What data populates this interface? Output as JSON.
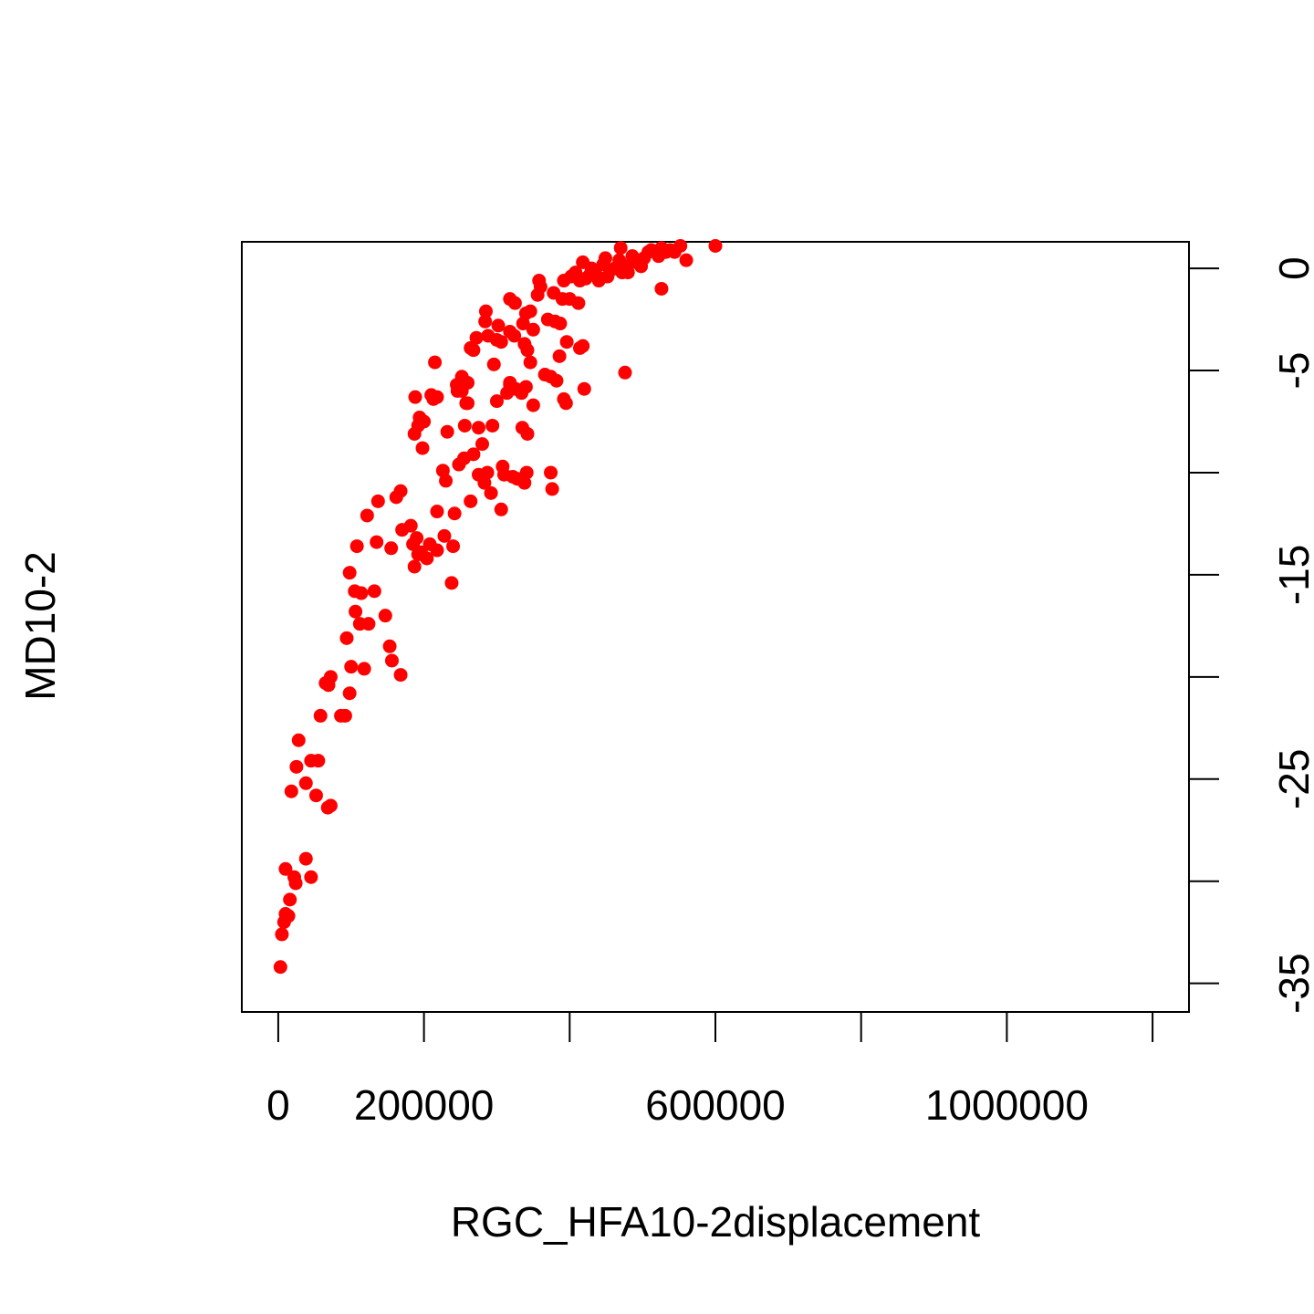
{
  "chart_data": {
    "type": "scatter",
    "title": "",
    "xlabel": "RGC_HFA10-2displacement",
    "ylabel": "MD10-2",
    "xlim": [
      -50000,
      1250000
    ],
    "ylim": [
      -36.4,
      1.3
    ],
    "x_ticks": [
      0,
      200000,
      400000,
      600000,
      800000,
      1000000,
      1200000
    ],
    "x_tick_labels": [
      "0",
      "200000",
      "",
      "600000",
      "",
      "1000000",
      ""
    ],
    "y_ticks": [
      0,
      -5,
      -10,
      -15,
      -20,
      -25,
      -30,
      -35
    ],
    "y_tick_labels": [
      "0",
      "-5",
      "",
      "-15",
      "",
      "-25",
      "",
      "-35"
    ],
    "y_axis_side": "right",
    "grid": false,
    "legend": "none",
    "point_color": "#ff0000",
    "points": [
      [
        3000,
        -34.2
      ],
      [
        5000,
        -32.6
      ],
      [
        8000,
        -32.0
      ],
      [
        10000,
        -31.6
      ],
      [
        14000,
        -31.7
      ],
      [
        16000,
        -30.9
      ],
      [
        10000,
        -29.4
      ],
      [
        22000,
        -29.8
      ],
      [
        24000,
        -30.1
      ],
      [
        38000,
        -28.9
      ],
      [
        45000,
        -29.8
      ],
      [
        18000,
        -25.6
      ],
      [
        25000,
        -24.4
      ],
      [
        38000,
        -25.2
      ],
      [
        45000,
        -24.1
      ],
      [
        55000,
        -24.1
      ],
      [
        52000,
        -25.8
      ],
      [
        68000,
        -26.4
      ],
      [
        72000,
        -26.3
      ],
      [
        28000,
        -23.1
      ],
      [
        58000,
        -21.9
      ],
      [
        65000,
        -20.3
      ],
      [
        72000,
        -20.0
      ],
      [
        69000,
        -20.4
      ],
      [
        86000,
        -21.9
      ],
      [
        92000,
        -21.9
      ],
      [
        98000,
        -20.8
      ],
      [
        100000,
        -19.5
      ],
      [
        118000,
        -19.6
      ],
      [
        94000,
        -18.1
      ],
      [
        106000,
        -16.8
      ],
      [
        112000,
        -17.4
      ],
      [
        124000,
        -17.4
      ],
      [
        132000,
        -15.8
      ],
      [
        105000,
        -15.8
      ],
      [
        98000,
        -14.9
      ],
      [
        114000,
        -15.9
      ],
      [
        147000,
        -17.0
      ],
      [
        153000,
        -18.5
      ],
      [
        156000,
        -19.2
      ],
      [
        168000,
        -19.9
      ],
      [
        108000,
        -13.6
      ],
      [
        122000,
        -12.1
      ],
      [
        135000,
        -13.4
      ],
      [
        137000,
        -11.4
      ],
      [
        155000,
        -13.7
      ],
      [
        162000,
        -11.2
      ],
      [
        168000,
        -10.9
      ],
      [
        170000,
        -12.8
      ],
      [
        185000,
        -13.5
      ],
      [
        182000,
        -12.6
      ],
      [
        190000,
        -13.2
      ],
      [
        192000,
        -14.0
      ],
      [
        187000,
        -14.6
      ],
      [
        196000,
        -13.9
      ],
      [
        204000,
        -14.2
      ],
      [
        208000,
        -13.5
      ],
      [
        218000,
        -13.8
      ],
      [
        228000,
        -13.1
      ],
      [
        240000,
        -13.6
      ],
      [
        238000,
        -15.4
      ],
      [
        218000,
        -11.9
      ],
      [
        242000,
        -12.0
      ],
      [
        264000,
        -11.4
      ],
      [
        198000,
        -8.8
      ],
      [
        226000,
        -9.9
      ],
      [
        230000,
        -10.4
      ],
      [
        248000,
        -9.6
      ],
      [
        255000,
        -9.3
      ],
      [
        268000,
        -9.1
      ],
      [
        275000,
        -10.1
      ],
      [
        287000,
        -10.0
      ],
      [
        283000,
        -10.5
      ],
      [
        292000,
        -11.0
      ],
      [
        308000,
        -9.7
      ],
      [
        306000,
        -11.8
      ],
      [
        310000,
        -10.1
      ],
      [
        322000,
        -10.2
      ],
      [
        328000,
        -10.3
      ],
      [
        338000,
        -10.5
      ],
      [
        341000,
        -10.0
      ],
      [
        374000,
        -10.0
      ],
      [
        376000,
        -10.8
      ],
      [
        187000,
        -8.1
      ],
      [
        192000,
        -7.7
      ],
      [
        194000,
        -7.3
      ],
      [
        196000,
        -7.4
      ],
      [
        200000,
        -7.5
      ],
      [
        188000,
        -6.3
      ],
      [
        210000,
        -6.2
      ],
      [
        218000,
        -6.3
      ],
      [
        213000,
        -6.4
      ],
      [
        232000,
        -8.0
      ],
      [
        246000,
        -6.0
      ],
      [
        252000,
        -6.0
      ],
      [
        245000,
        -5.7
      ],
      [
        258000,
        -6.6
      ],
      [
        260000,
        -6.6
      ],
      [
        256000,
        -7.7
      ],
      [
        280000,
        -8.6
      ],
      [
        275000,
        -7.8
      ],
      [
        294000,
        -7.7
      ],
      [
        300000,
        -6.5
      ],
      [
        314000,
        -6.1
      ],
      [
        318000,
        -5.7
      ],
      [
        326000,
        -5.9
      ],
      [
        334000,
        -6.1
      ],
      [
        340000,
        -5.8
      ],
      [
        335000,
        -7.8
      ],
      [
        342000,
        -8.1
      ],
      [
        350000,
        -6.7
      ],
      [
        215000,
        -4.6
      ],
      [
        252000,
        -5.3
      ],
      [
        260000,
        -5.6
      ],
      [
        268000,
        -4.0
      ],
      [
        264000,
        -3.9
      ],
      [
        272000,
        -3.4
      ],
      [
        288000,
        -3.3
      ],
      [
        284000,
        -2.6
      ],
      [
        285000,
        -2.1
      ],
      [
        296000,
        -4.7
      ],
      [
        300000,
        -3.5
      ],
      [
        302000,
        -2.8
      ],
      [
        306000,
        -3.6
      ],
      [
        318000,
        -5.6
      ],
      [
        318000,
        -3.1
      ],
      [
        324000,
        -3.3
      ],
      [
        325000,
        -1.7
      ],
      [
        318000,
        -1.5
      ],
      [
        336000,
        -2.7
      ],
      [
        340000,
        -2.2
      ],
      [
        346000,
        -2.1
      ],
      [
        338000,
        -3.7
      ],
      [
        342000,
        -4.0
      ],
      [
        346000,
        -4.6
      ],
      [
        350000,
        -3.0
      ],
      [
        356000,
        -1.3
      ],
      [
        360000,
        -0.9
      ],
      [
        358000,
        -0.6
      ],
      [
        370000,
        -2.5
      ],
      [
        380000,
        -2.6
      ],
      [
        387000,
        -2.7
      ],
      [
        396000,
        -3.6
      ],
      [
        386000,
        -4.3
      ],
      [
        390000,
        -1.5
      ],
      [
        400000,
        -1.5
      ],
      [
        412000,
        -1.7
      ],
      [
        366000,
        -5.2
      ],
      [
        374000,
        -5.3
      ],
      [
        382000,
        -5.5
      ],
      [
        392000,
        -6.4
      ],
      [
        395000,
        -6.6
      ],
      [
        418000,
        -3.8
      ],
      [
        414000,
        -3.9
      ],
      [
        420000,
        -5.9
      ],
      [
        476000,
        -5.1
      ],
      [
        378000,
        -1.2
      ],
      [
        392000,
        -0.6
      ],
      [
        402000,
        -0.4
      ],
      [
        408000,
        -0.2
      ],
      [
        414000,
        -0.6
      ],
      [
        418000,
        0.3
      ],
      [
        422000,
        -0.5
      ],
      [
        428000,
        -0.3
      ],
      [
        430000,
        0.0
      ],
      [
        436000,
        -0.3
      ],
      [
        440000,
        -0.6
      ],
      [
        446000,
        0.2
      ],
      [
        449000,
        0.5
      ],
      [
        452000,
        -0.4
      ],
      [
        456000,
        -0.1
      ],
      [
        462000,
        0.0
      ],
      [
        468000,
        0.4
      ],
      [
        472000,
        -0.2
      ],
      [
        470000,
        1.0
      ],
      [
        476000,
        0.1
      ],
      [
        480000,
        -0.2
      ],
      [
        486000,
        0.6
      ],
      [
        492000,
        0.3
      ],
      [
        498000,
        0.1
      ],
      [
        502000,
        0.5
      ],
      [
        508000,
        0.8
      ],
      [
        512000,
        0.9
      ],
      [
        518000,
        0.8
      ],
      [
        522000,
        0.6
      ],
      [
        526000,
        1.0
      ],
      [
        532000,
        0.8
      ],
      [
        538000,
        0.9
      ],
      [
        544000,
        0.8
      ],
      [
        552000,
        1.1
      ],
      [
        560000,
        0.4
      ],
      [
        600000,
        1.1
      ],
      [
        526000,
        -1.0
      ]
    ]
  }
}
